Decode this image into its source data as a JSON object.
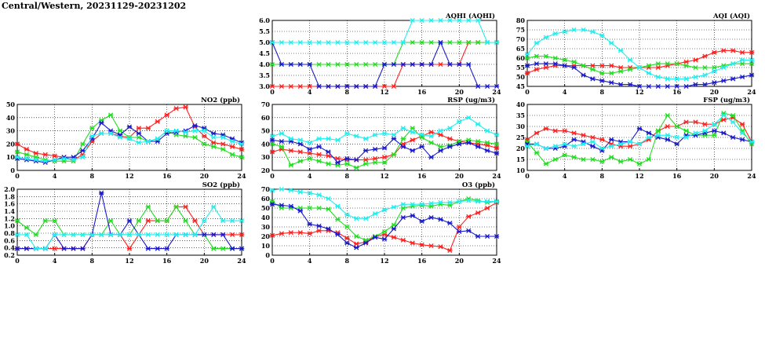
{
  "page_title": "Central/Western, 20231129-20231202",
  "series_colors": {
    "red": "#ff2020",
    "green": "#22dd22",
    "blue": "#1a1acc",
    "cyan": "#22eeee"
  },
  "chart_data": [
    {
      "id": "aqhi",
      "type": "line",
      "title": "AQHI (AQHI)",
      "xlim": [
        0,
        24
      ],
      "xticks": [
        0,
        4,
        8,
        12,
        16,
        20,
        24
      ],
      "ylim": [
        3.0,
        6.0
      ],
      "yticks": [
        "3.0",
        "3.5",
        "4.0",
        "4.5",
        "5.0",
        "5.5",
        "6.0"
      ],
      "grid": true,
      "series": [
        {
          "color": "red",
          "values": [
            3,
            3,
            3,
            3,
            3,
            3,
            3,
            3,
            3,
            3,
            3,
            3,
            3,
            3,
            4,
            4,
            4,
            4,
            4,
            4,
            4,
            5,
            5,
            5,
            5
          ]
        },
        {
          "color": "green",
          "values": [
            4,
            4,
            4,
            4,
            4,
            4,
            4,
            4,
            4,
            4,
            4,
            4,
            4,
            4,
            5,
            5,
            5,
            5,
            5,
            5,
            5,
            5,
            5,
            5,
            5
          ]
        },
        {
          "color": "blue",
          "values": [
            5,
            4,
            4,
            4,
            4,
            3,
            3,
            3,
            3,
            3,
            3,
            3,
            4,
            4,
            4,
            4,
            4,
            4,
            5,
            4,
            4,
            4,
            3,
            3,
            3
          ]
        },
        {
          "color": "cyan",
          "values": [
            5,
            5,
            5,
            5,
            5,
            5,
            5,
            5,
            5,
            5,
            5,
            5,
            5,
            5,
            5,
            6,
            6,
            6,
            6,
            6,
            6,
            6,
            6,
            5,
            5
          ]
        }
      ]
    },
    {
      "id": "aqi",
      "type": "line",
      "title": "AQI (AQI)",
      "xlim": [
        0,
        24
      ],
      "xticks": [
        0,
        4,
        8,
        12,
        16,
        20,
        24
      ],
      "ylim": [
        45,
        80
      ],
      "yticks": [
        "45",
        "50",
        "55",
        "60",
        "65",
        "70",
        "75",
        "80"
      ],
      "grid": true,
      "series": [
        {
          "color": "red",
          "values": [
            52,
            54,
            55,
            56,
            56,
            56,
            56,
            56,
            56,
            56,
            55,
            55,
            55,
            55,
            55,
            56,
            57,
            58,
            59,
            61,
            63,
            64,
            64,
            63,
            63
          ]
        },
        {
          "color": "green",
          "values": [
            60,
            61,
            61,
            60,
            59,
            58,
            56,
            54,
            52,
            52,
            53,
            54,
            55,
            56,
            57,
            57,
            57,
            56,
            55,
            55,
            55,
            56,
            57,
            57,
            57
          ]
        },
        {
          "color": "blue",
          "values": [
            56,
            57,
            57,
            57,
            56,
            55,
            51,
            49,
            48,
            47,
            46,
            46,
            45,
            45,
            45,
            45,
            45,
            45,
            46,
            46,
            47,
            48,
            49,
            50,
            51
          ]
        },
        {
          "color": "cyan",
          "values": [
            62,
            68,
            71,
            73,
            74,
            75,
            75,
            74,
            72,
            68,
            64,
            59,
            55,
            52,
            50,
            49,
            49,
            49,
            50,
            51,
            53,
            55,
            57,
            59,
            59
          ]
        }
      ]
    },
    {
      "id": "no2",
      "type": "line",
      "title": "NO2 (ppb)",
      "xlim": [
        0,
        24
      ],
      "xticks": [
        0,
        4,
        8,
        12,
        16,
        20,
        24
      ],
      "ylim": [
        0,
        50
      ],
      "yticks": [
        "0",
        "10",
        "20",
        "30",
        "40",
        "50"
      ],
      "grid": true,
      "series": [
        {
          "color": "red",
          "values": [
            20,
            16,
            13,
            12,
            11,
            10,
            8,
            12,
            22,
            28,
            28,
            26,
            25,
            32,
            32,
            37,
            42,
            47,
            48,
            33,
            26,
            21,
            20,
            18,
            16
          ]
        },
        {
          "color": "green",
          "values": [
            14,
            12,
            10,
            8,
            7,
            7,
            7,
            20,
            32,
            38,
            42,
            30,
            25,
            25,
            22,
            24,
            30,
            27,
            26,
            25,
            20,
            18,
            16,
            12,
            10
          ]
        },
        {
          "color": "blue",
          "values": [
            9,
            8,
            7,
            6,
            8,
            10,
            10,
            15,
            24,
            36,
            30,
            27,
            33,
            28,
            22,
            22,
            28,
            29,
            30,
            34,
            32,
            28,
            27,
            24,
            21
          ]
        },
        {
          "color": "cyan",
          "values": [
            10,
            9,
            8,
            7,
            8,
            9,
            8,
            10,
            26,
            28,
            28,
            25,
            24,
            21,
            22,
            24,
            30,
            30,
            29,
            30,
            30,
            25,
            25,
            22,
            20
          ]
        }
      ]
    },
    {
      "id": "rsp",
      "type": "line",
      "title": "RSP (ug/m3)",
      "xlim": [
        0,
        24
      ],
      "xticks": [
        0,
        4,
        8,
        12,
        16,
        20,
        24
      ],
      "ylim": [
        20,
        70
      ],
      "yticks": [
        "20",
        "30",
        "40",
        "50",
        "60",
        "70"
      ],
      "grid": true,
      "series": [
        {
          "color": "red",
          "values": [
            34,
            36,
            35,
            34,
            33,
            32,
            31,
            29,
            28,
            28,
            28,
            29,
            30,
            32,
            40,
            43,
            46,
            49,
            47,
            44,
            42,
            41,
            40,
            39,
            37
          ]
        },
        {
          "color": "green",
          "values": [
            40,
            38,
            24,
            27,
            29,
            27,
            25,
            24,
            25,
            22,
            25,
            26,
            26,
            32,
            44,
            52,
            45,
            41,
            38,
            39,
            42,
            43,
            42,
            41,
            40
          ]
        },
        {
          "color": "blue",
          "values": [
            43,
            42,
            42,
            40,
            36,
            38,
            34,
            26,
            29,
            28,
            35,
            36,
            37,
            44,
            38,
            35,
            38,
            30,
            35,
            38,
            40,
            41,
            38,
            35,
            33
          ]
        },
        {
          "color": "cyan",
          "values": [
            46,
            48,
            44,
            43,
            41,
            44,
            44,
            43,
            48,
            46,
            44,
            47,
            48,
            47,
            52,
            49,
            47,
            46,
            50,
            52,
            57,
            60,
            55,
            50,
            47
          ]
        }
      ]
    },
    {
      "id": "fsp",
      "type": "line",
      "title": "FSP (ug/m3)",
      "xlim": [
        0,
        24
      ],
      "xticks": [
        0,
        4,
        8,
        12,
        16,
        20,
        24
      ],
      "ylim": [
        10,
        40
      ],
      "yticks": [
        "10",
        "15",
        "20",
        "25",
        "30",
        "35",
        "40"
      ],
      "grid": true,
      "series": [
        {
          "color": "red",
          "values": [
            24,
            27,
            29,
            28,
            28,
            27,
            26,
            25,
            24,
            22,
            21,
            21,
            22,
            24,
            28,
            30,
            30,
            32,
            32,
            31,
            31,
            33,
            34,
            31,
            23
          ]
        },
        {
          "color": "green",
          "values": [
            23,
            18,
            13,
            15,
            17,
            16,
            15,
            15,
            14,
            16,
            14,
            15,
            13,
            15,
            28,
            35,
            30,
            28,
            26,
            26,
            26,
            36,
            35,
            28,
            22
          ]
        },
        {
          "color": "blue",
          "values": [
            22,
            22,
            20,
            20,
            21,
            24,
            23,
            21,
            19,
            24,
            23,
            23,
            29,
            27,
            25,
            24,
            22,
            26,
            26,
            27,
            28,
            27,
            25,
            24,
            23
          ]
        },
        {
          "color": "cyan",
          "values": [
            21,
            22,
            20,
            21,
            22,
            21,
            22,
            23,
            20,
            21,
            22,
            23,
            22,
            25,
            26,
            26,
            25,
            25,
            27,
            28,
            31,
            35,
            32,
            27,
            23
          ]
        }
      ]
    },
    {
      "id": "so2",
      "type": "line",
      "title": "SO2 (ppb)",
      "xlim": [
        0,
        24
      ],
      "xticks": [
        0,
        4,
        8,
        12,
        16,
        20,
        24
      ],
      "ylim": [
        0.2,
        2.0
      ],
      "yticks": [
        "0.2",
        "0.4",
        "0.6",
        "0.8",
        "1.0",
        "1.2",
        "1.4",
        "1.6",
        "1.8",
        "2.0"
      ],
      "grid": true,
      "series": [
        {
          "color": "red",
          "values": [
            0.38,
            0.38,
            0.38,
            0.38,
            0.38,
            0.38,
            0.38,
            0.38,
            0.76,
            0.76,
            0.76,
            0.76,
            0.38,
            0.76,
            1.14,
            1.14,
            1.14,
            1.52,
            1.52,
            1.14,
            0.76,
            0.76,
            0.76,
            0.76,
            0.76
          ]
        },
        {
          "color": "green",
          "values": [
            1.14,
            0.95,
            0.76,
            1.14,
            1.14,
            0.76,
            0.76,
            0.76,
            0.76,
            0.76,
            1.14,
            0.76,
            0.76,
            1.14,
            1.52,
            1.14,
            1.14,
            1.52,
            1.14,
            0.76,
            0.76,
            0.38,
            0.38,
            0.38,
            0.38
          ]
        },
        {
          "color": "blue",
          "values": [
            0.38,
            0.38,
            0.38,
            0.38,
            0.76,
            0.38,
            0.38,
            0.38,
            0.76,
            1.9,
            0.76,
            0.76,
            1.14,
            0.76,
            0.38,
            0.38,
            0.38,
            0.76,
            0.76,
            0.76,
            0.76,
            0.76,
            0.76,
            0.38,
            0.38
          ]
        },
        {
          "color": "cyan",
          "values": [
            0.76,
            0.76,
            0.38,
            0.38,
            0.76,
            0.76,
            0.76,
            0.76,
            0.76,
            0.76,
            0.76,
            0.76,
            0.76,
            0.76,
            0.76,
            0.76,
            0.76,
            0.76,
            0.76,
            0.76,
            1.14,
            1.52,
            1.14,
            1.14,
            1.14
          ]
        }
      ]
    },
    {
      "id": "o3",
      "type": "line",
      "title": "O3 (ppb)",
      "xlim": [
        0,
        24
      ],
      "xticks": [
        0,
        4,
        8,
        12,
        16,
        20,
        24
      ],
      "ylim": [
        0,
        70
      ],
      "yticks": [
        "0",
        "10",
        "20",
        "30",
        "40",
        "50",
        "60",
        "70"
      ],
      "grid": true,
      "series": [
        {
          "color": "red",
          "values": [
            21,
            23,
            24,
            24,
            23,
            26,
            26,
            24,
            18,
            12,
            14,
            20,
            22,
            19,
            16,
            13,
            11,
            10,
            9,
            5,
            30,
            41,
            45,
            50,
            56
          ]
        },
        {
          "color": "green",
          "values": [
            57,
            50,
            50,
            50,
            50,
            50,
            49,
            38,
            30,
            20,
            16,
            20,
            25,
            32,
            50,
            52,
            53,
            52,
            54,
            53,
            57,
            60,
            58,
            56,
            57
          ]
        },
        {
          "color": "blue",
          "values": [
            54,
            53,
            52,
            47,
            33,
            31,
            28,
            22,
            13,
            8,
            13,
            19,
            17,
            28,
            40,
            42,
            36,
            40,
            38,
            34,
            25,
            26,
            20,
            20,
            20
          ]
        },
        {
          "color": "cyan",
          "values": [
            69,
            70,
            69,
            67,
            66,
            64,
            60,
            52,
            43,
            39,
            39,
            44,
            48,
            51,
            54,
            54,
            54,
            55,
            56,
            56,
            57,
            58,
            57,
            57,
            57
          ]
        }
      ]
    }
  ]
}
